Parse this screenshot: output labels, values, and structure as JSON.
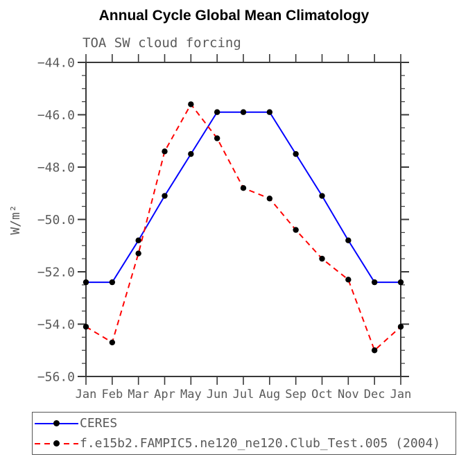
{
  "chart_data": {
    "type": "line",
    "title": "Annual Cycle Global Mean Climatology",
    "subtitle": "TOA SW cloud forcing",
    "ylabel": "W/m²",
    "xlabel": "",
    "categories": [
      "Jan",
      "Feb",
      "Mar",
      "Apr",
      "May",
      "Jun",
      "Jul",
      "Aug",
      "Sep",
      "Oct",
      "Nov",
      "Dec",
      "Jan"
    ],
    "series": [
      {
        "name": "CERES",
        "color": "#0000ff",
        "style": "solid",
        "marker": "filled-circle",
        "marker_color": "#000000",
        "values": [
          -52.4,
          -52.4,
          -50.8,
          -49.1,
          -47.5,
          -45.9,
          -45.9,
          -45.9,
          -47.5,
          -49.1,
          -50.8,
          -52.4,
          -52.4
        ]
      },
      {
        "name": "f.e15b2.FAMPIC5.ne120_ne120.Club_Test.005 (2004)",
        "color": "#ff0000",
        "style": "dashed",
        "marker": "filled-circle",
        "marker_color": "#000000",
        "values": [
          -54.1,
          -54.7,
          -51.3,
          -47.4,
          -45.6,
          -46.9,
          -48.8,
          -49.2,
          -50.4,
          -51.5,
          -52.3,
          -55.0,
          -54.1
        ]
      }
    ],
    "ylim": [
      -56.0,
      -44.0
    ],
    "ytick_labels": [
      "−44.0",
      "−46.0",
      "−48.0",
      "−50.0",
      "−52.0",
      "−54.0",
      "−56.0"
    ],
    "ytick_values": [
      -44.0,
      -46.0,
      -48.0,
      -50.0,
      -52.0,
      -54.0,
      -56.0
    ],
    "ytick_minor_step": 0.5,
    "grid": false,
    "legend_position": "bottom-left",
    "axis_color": "#383838",
    "text_color": "#5a5a5a",
    "background_color": "#ffffff"
  },
  "legend": {
    "items": [
      {
        "label": "CERES"
      },
      {
        "label": "f.e15b2.FAMPIC5.ne120_ne120.Club_Test.005 (2004)"
      }
    ]
  }
}
